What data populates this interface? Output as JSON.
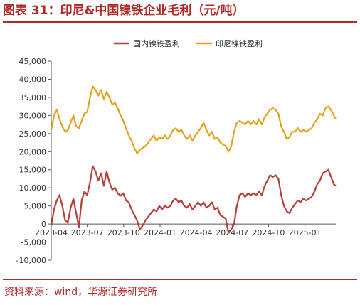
{
  "title": "图表 31：印尼&中国镍铁企业毛利（元/吨）",
  "source": "资料来源：wind，华源证券研究所",
  "chart_data": {
    "type": "line",
    "title": "",
    "xlabel": "",
    "ylabel": "",
    "ylim": [
      -10000,
      45000
    ],
    "yticks": [
      -10000,
      -5000,
      0,
      5000,
      10000,
      15000,
      20000,
      25000,
      30000,
      35000,
      40000,
      45000
    ],
    "ytick_labels": [
      "-10,000",
      "-5,000",
      "0",
      "5,000",
      "10,000",
      "15,000",
      "20,000",
      "25,000",
      "30,000",
      "35,000",
      "40,000",
      "45,000"
    ],
    "xticks": [
      "2023-04",
      "2023-07",
      "2023-10",
      "2024-01",
      "2024-04",
      "2024-07",
      "2024-10",
      "2025-01"
    ],
    "xlim": [
      "2023-04-01",
      "2025-03-20"
    ],
    "grid": false,
    "legend_position": "top-center",
    "series": [
      {
        "name": "国内镍铁盈利",
        "color": "#b5403a",
        "points": [
          [
            "2023-04-01",
            -500
          ],
          [
            "2023-04-08",
            4000
          ],
          [
            "2023-04-15",
            6500
          ],
          [
            "2023-04-22",
            8000
          ],
          [
            "2023-04-29",
            5000
          ],
          [
            "2023-05-06",
            1000
          ],
          [
            "2023-05-13",
            500
          ],
          [
            "2023-05-20",
            4500
          ],
          [
            "2023-05-27",
            7000
          ],
          [
            "2023-06-03",
            3000
          ],
          [
            "2023-06-10",
            -800
          ],
          [
            "2023-06-17",
            6500
          ],
          [
            "2023-06-24",
            9000
          ],
          [
            "2023-07-01",
            8000
          ],
          [
            "2023-07-08",
            11500
          ],
          [
            "2023-07-15",
            16000
          ],
          [
            "2023-07-22",
            14500
          ],
          [
            "2023-07-29",
            12000
          ],
          [
            "2023-08-05",
            14000
          ],
          [
            "2023-08-12",
            10500
          ],
          [
            "2023-08-19",
            14500
          ],
          [
            "2023-08-26",
            11500
          ],
          [
            "2023-09-02",
            9500
          ],
          [
            "2023-09-09",
            10000
          ],
          [
            "2023-09-16",
            8500
          ],
          [
            "2023-09-23",
            7800
          ],
          [
            "2023-09-30",
            8500
          ],
          [
            "2023-10-07",
            6500
          ],
          [
            "2023-10-14",
            6000
          ],
          [
            "2023-10-21",
            4000
          ],
          [
            "2023-10-28",
            2500
          ],
          [
            "2023-11-04",
            1000
          ],
          [
            "2023-11-11",
            -1500
          ],
          [
            "2023-11-18",
            -500
          ],
          [
            "2023-11-25",
            1000
          ],
          [
            "2023-12-02",
            2000
          ],
          [
            "2023-12-09",
            3000
          ],
          [
            "2023-12-16",
            4000
          ],
          [
            "2023-12-23",
            3500
          ],
          [
            "2023-12-30",
            5000
          ],
          [
            "2024-01-06",
            4000
          ],
          [
            "2024-01-13",
            5000
          ],
          [
            "2024-01-20",
            4500
          ],
          [
            "2024-01-27",
            5000
          ],
          [
            "2024-02-03",
            6500
          ],
          [
            "2024-02-10",
            7000
          ],
          [
            "2024-02-17",
            6000
          ],
          [
            "2024-02-24",
            6500
          ],
          [
            "2024-03-02",
            5000
          ],
          [
            "2024-03-09",
            4500
          ],
          [
            "2024-03-16",
            5500
          ],
          [
            "2024-03-23",
            4000
          ],
          [
            "2024-03-30",
            5000
          ],
          [
            "2024-04-06",
            6000
          ],
          [
            "2024-04-13",
            5000
          ],
          [
            "2024-04-20",
            6000
          ],
          [
            "2024-04-27",
            4500
          ],
          [
            "2024-05-04",
            5000
          ],
          [
            "2024-05-11",
            6000
          ],
          [
            "2024-05-18",
            4000
          ],
          [
            "2024-05-25",
            4500
          ],
          [
            "2024-06-01",
            2500
          ],
          [
            "2024-06-08",
            2000
          ],
          [
            "2024-06-15",
            1500
          ],
          [
            "2024-06-22",
            -2500
          ],
          [
            "2024-06-29",
            -1500
          ],
          [
            "2024-07-06",
            0
          ],
          [
            "2024-07-13",
            5000
          ],
          [
            "2024-07-20",
            8000
          ],
          [
            "2024-07-27",
            8500
          ],
          [
            "2024-08-03",
            7500
          ],
          [
            "2024-08-10",
            8500
          ],
          [
            "2024-08-17",
            8000
          ],
          [
            "2024-08-24",
            8500
          ],
          [
            "2024-08-31",
            8000
          ],
          [
            "2024-09-07",
            9000
          ],
          [
            "2024-09-14",
            8000
          ],
          [
            "2024-09-21",
            10500
          ],
          [
            "2024-09-28",
            12000
          ],
          [
            "2024-10-05",
            13500
          ],
          [
            "2024-10-12",
            13000
          ],
          [
            "2024-10-19",
            13500
          ],
          [
            "2024-10-26",
            12500
          ],
          [
            "2024-11-02",
            8000
          ],
          [
            "2024-11-09",
            5000
          ],
          [
            "2024-11-16",
            3500
          ],
          [
            "2024-11-23",
            3000
          ],
          [
            "2024-11-30",
            4500
          ],
          [
            "2024-12-07",
            5500
          ],
          [
            "2024-12-14",
            6500
          ],
          [
            "2024-12-21",
            6000
          ],
          [
            "2024-12-28",
            7000
          ],
          [
            "2025-01-04",
            6500
          ],
          [
            "2025-01-11",
            7000
          ],
          [
            "2025-01-18",
            7500
          ],
          [
            "2025-01-25",
            9000
          ],
          [
            "2025-02-01",
            11000
          ],
          [
            "2025-02-08",
            12000
          ],
          [
            "2025-02-15",
            14000
          ],
          [
            "2025-02-22",
            14500
          ],
          [
            "2025-03-01",
            15000
          ],
          [
            "2025-03-08",
            13000
          ],
          [
            "2025-03-15",
            11000
          ],
          [
            "2025-03-20",
            10500
          ]
        ]
      },
      {
        "name": "印尼镍铁盈利",
        "color": "#e3a21a",
        "points": [
          [
            "2023-04-01",
            26000
          ],
          [
            "2023-04-08",
            30000
          ],
          [
            "2023-04-15",
            31500
          ],
          [
            "2023-04-22",
            29000
          ],
          [
            "2023-04-29",
            27000
          ],
          [
            "2023-05-06",
            25500
          ],
          [
            "2023-05-13",
            26000
          ],
          [
            "2023-05-20",
            28000
          ],
          [
            "2023-05-27",
            30000
          ],
          [
            "2023-06-03",
            27000
          ],
          [
            "2023-06-10",
            26500
          ],
          [
            "2023-06-17",
            28500
          ],
          [
            "2023-06-24",
            30500
          ],
          [
            "2023-07-01",
            31000
          ],
          [
            "2023-07-08",
            35000
          ],
          [
            "2023-07-15",
            38000
          ],
          [
            "2023-07-22",
            37000
          ],
          [
            "2023-07-29",
            35500
          ],
          [
            "2023-08-05",
            37000
          ],
          [
            "2023-08-12",
            34500
          ],
          [
            "2023-08-19",
            36500
          ],
          [
            "2023-08-26",
            35000
          ],
          [
            "2023-09-02",
            33000
          ],
          [
            "2023-09-09",
            33500
          ],
          [
            "2023-09-16",
            32000
          ],
          [
            "2023-09-23",
            30000
          ],
          [
            "2023-09-30",
            28500
          ],
          [
            "2023-10-07",
            26500
          ],
          [
            "2023-10-14",
            24500
          ],
          [
            "2023-10-21",
            23000
          ],
          [
            "2023-10-28",
            21000
          ],
          [
            "2023-11-04",
            19500
          ],
          [
            "2023-11-11",
            20500
          ],
          [
            "2023-11-18",
            21000
          ],
          [
            "2023-11-25",
            21500
          ],
          [
            "2023-12-02",
            22500
          ],
          [
            "2023-12-09",
            23500
          ],
          [
            "2023-12-16",
            24500
          ],
          [
            "2023-12-23",
            23000
          ],
          [
            "2023-12-30",
            24000
          ],
          [
            "2024-01-06",
            23500
          ],
          [
            "2024-01-13",
            24500
          ],
          [
            "2024-01-20",
            23500
          ],
          [
            "2024-01-27",
            24500
          ],
          [
            "2024-02-03",
            26000
          ],
          [
            "2024-02-10",
            26500
          ],
          [
            "2024-02-17",
            25500
          ],
          [
            "2024-02-24",
            26000
          ],
          [
            "2024-03-02",
            24500
          ],
          [
            "2024-03-09",
            23500
          ],
          [
            "2024-03-16",
            24500
          ],
          [
            "2024-03-23",
            23000
          ],
          [
            "2024-03-30",
            24500
          ],
          [
            "2024-04-06",
            25500
          ],
          [
            "2024-04-13",
            26500
          ],
          [
            "2024-04-20",
            28000
          ],
          [
            "2024-04-27",
            26000
          ],
          [
            "2024-05-04",
            24500
          ],
          [
            "2024-05-11",
            25500
          ],
          [
            "2024-05-18",
            23500
          ],
          [
            "2024-05-25",
            24000
          ],
          [
            "2024-06-01",
            22500
          ],
          [
            "2024-06-08",
            22000
          ],
          [
            "2024-06-15",
            21500
          ],
          [
            "2024-06-22",
            20000
          ],
          [
            "2024-06-29",
            21500
          ],
          [
            "2024-07-06",
            25500
          ],
          [
            "2024-07-13",
            28000
          ],
          [
            "2024-07-20",
            28500
          ],
          [
            "2024-07-27",
            28000
          ],
          [
            "2024-08-03",
            27500
          ],
          [
            "2024-08-10",
            28500
          ],
          [
            "2024-08-17",
            27500
          ],
          [
            "2024-08-24",
            28500
          ],
          [
            "2024-08-31",
            27500
          ],
          [
            "2024-09-07",
            29000
          ],
          [
            "2024-09-14",
            27500
          ],
          [
            "2024-09-21",
            29500
          ],
          [
            "2024-09-28",
            30500
          ],
          [
            "2024-10-05",
            31500
          ],
          [
            "2024-10-12",
            32000
          ],
          [
            "2024-10-19",
            31500
          ],
          [
            "2024-10-26",
            30500
          ],
          [
            "2024-11-02",
            27000
          ],
          [
            "2024-11-09",
            25500
          ],
          [
            "2024-11-16",
            23500
          ],
          [
            "2024-11-23",
            24000
          ],
          [
            "2024-11-30",
            25500
          ],
          [
            "2024-12-07",
            25500
          ],
          [
            "2024-12-14",
            26500
          ],
          [
            "2024-12-21",
            25500
          ],
          [
            "2024-12-28",
            26000
          ],
          [
            "2025-01-04",
            25500
          ],
          [
            "2025-01-11",
            26000
          ],
          [
            "2025-01-18",
            26500
          ],
          [
            "2025-01-25",
            28000
          ],
          [
            "2025-02-01",
            29000
          ],
          [
            "2025-02-08",
            30500
          ],
          [
            "2025-02-15",
            30000
          ],
          [
            "2025-02-22",
            32000
          ],
          [
            "2025-03-01",
            32500
          ],
          [
            "2025-03-08",
            31500
          ],
          [
            "2025-03-15",
            30000
          ],
          [
            "2025-03-20",
            29000
          ]
        ]
      }
    ]
  }
}
